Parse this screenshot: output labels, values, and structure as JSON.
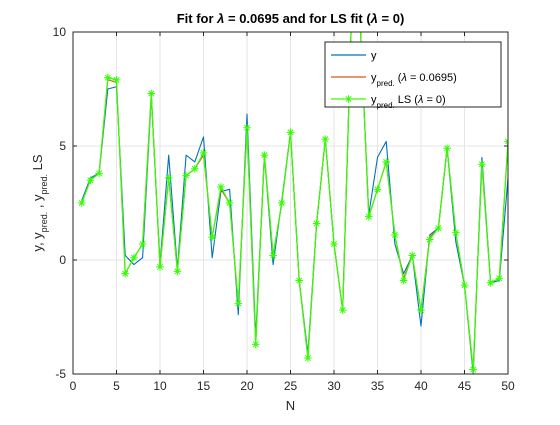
{
  "chart_data": {
    "type": "line",
    "title_parts": [
      "Fit for ",
      "λ",
      " = 0.0695 and for LS fit (",
      "λ",
      " = 0)"
    ],
    "xlabel": "N",
    "ylabel_parts": [
      "y, y",
      "pred.",
      " , y",
      "pred.",
      " LS"
    ],
    "xlim": [
      0,
      50
    ],
    "ylim": [
      -5,
      10
    ],
    "xticks": [
      0,
      5,
      10,
      15,
      20,
      25,
      30,
      35,
      40,
      45,
      50
    ],
    "yticks": [
      -5,
      0,
      5,
      10
    ],
    "grid": true,
    "legend_position": "top-right",
    "x": [
      1,
      2,
      3,
      4,
      5,
      6,
      7,
      8,
      9,
      10,
      11,
      12,
      13,
      14,
      15,
      16,
      17,
      18,
      19,
      20,
      21,
      22,
      23,
      24,
      25,
      26,
      27,
      28,
      29,
      30,
      31,
      32,
      33,
      34,
      35,
      36,
      37,
      38,
      39,
      40,
      41,
      42,
      43,
      44,
      45,
      46,
      47,
      48,
      49,
      50
    ],
    "series": [
      {
        "name": "y",
        "color": "#0072BD",
        "marker": "none",
        "values": [
          2.6,
          3.6,
          3.8,
          7.5,
          7.6,
          0.2,
          -0.2,
          0.1,
          7.2,
          -0.2,
          4.6,
          -0.4,
          4.6,
          4.3,
          5.4,
          0.1,
          3.0,
          3.1,
          -2.4,
          6.4,
          -3.4,
          4.6,
          -0.2,
          2.6,
          5.6,
          -0.9,
          -4.1,
          1.6,
          5.3,
          0.7,
          -2.2,
          10.5,
          10.5,
          2.0,
          4.5,
          5.2,
          0.7,
          -0.6,
          0.2,
          -2.9,
          1.1,
          1.4,
          4.9,
          0.8,
          -1.1,
          -5.0,
          4.5,
          -1.0,
          -0.9,
          3.6
        ]
      },
      {
        "name_parts": [
          "y",
          "pred.",
          " (",
          "λ",
          " = 0.0695)"
        ],
        "color": "#D95319",
        "marker": "none",
        "values": [
          2.5,
          3.5,
          3.8,
          7.9,
          7.8,
          -0.6,
          0.1,
          0.7,
          7.3,
          -0.3,
          3.6,
          -0.5,
          3.7,
          4.0,
          4.6,
          1.0,
          3.1,
          2.5,
          -1.9,
          5.8,
          -3.7,
          4.6,
          0.2,
          2.5,
          5.6,
          -0.9,
          -4.3,
          1.6,
          5.3,
          0.7,
          -2.2,
          10.5,
          10.5,
          1.9,
          3.1,
          4.3,
          1.1,
          -0.8,
          0.2,
          -2.2,
          1.0,
          1.4,
          4.9,
          1.2,
          -1.1,
          -4.8,
          4.2,
          -1.0,
          -0.8,
          5.2
        ]
      },
      {
        "name_parts": [
          "y",
          "pred.",
          " LS (",
          "λ",
          " = 0)"
        ],
        "color": "#33FF00",
        "marker": "*",
        "values": [
          2.5,
          3.5,
          3.8,
          8.0,
          7.9,
          -0.6,
          0.1,
          0.7,
          7.3,
          -0.3,
          3.6,
          -0.5,
          3.7,
          4.0,
          4.7,
          1.0,
          3.2,
          2.5,
          -1.9,
          5.8,
          -3.7,
          4.6,
          0.2,
          2.5,
          5.6,
          -0.9,
          -4.3,
          1.6,
          5.3,
          0.7,
          -2.2,
          10.5,
          10.5,
          1.9,
          3.1,
          4.3,
          1.1,
          -0.9,
          0.2,
          -2.2,
          0.9,
          1.4,
          4.9,
          1.2,
          -1.1,
          -4.8,
          4.2,
          -1.0,
          -0.8,
          5.2
        ]
      }
    ]
  }
}
